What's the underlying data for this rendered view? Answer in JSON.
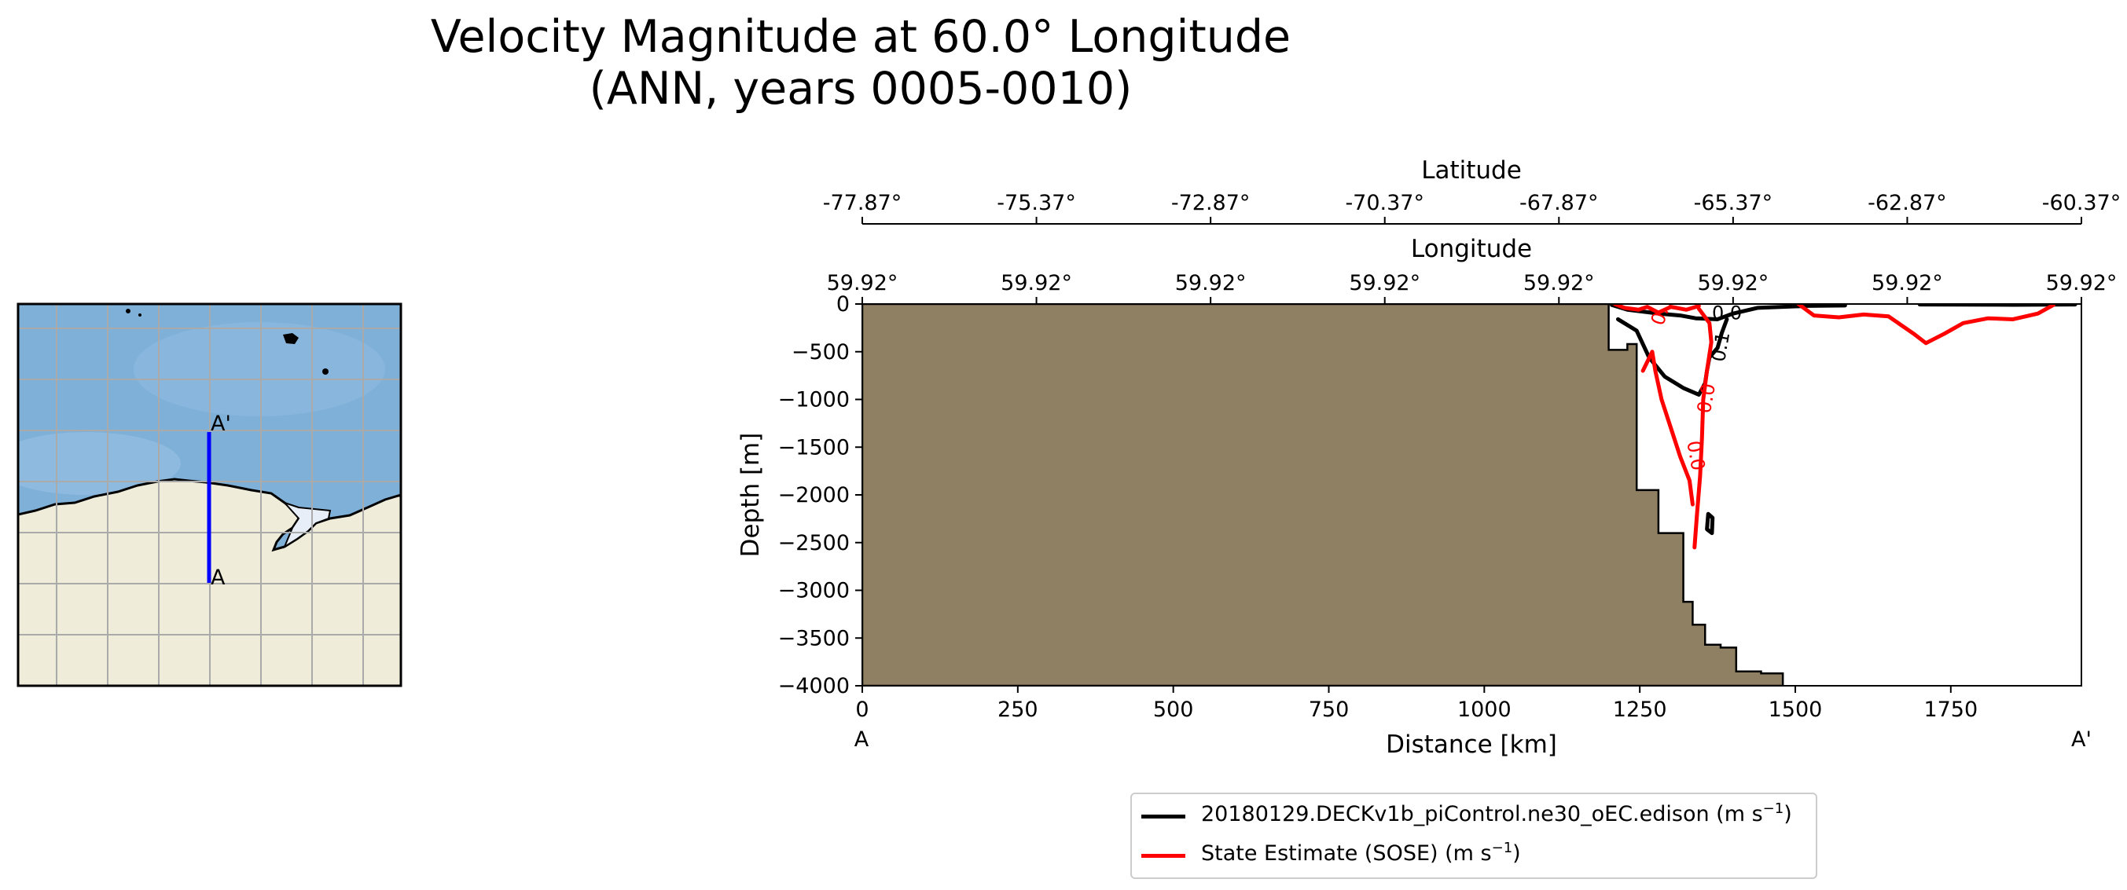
{
  "title": {
    "line1": "Velocity Magnitude at 60.0° Longitude",
    "line2": "(ANN, years 0005-0010)"
  },
  "colors": {
    "model": "#000000",
    "obs": "#ff0000",
    "land_section": "#8f7f63",
    "ocean_map": "#7fb0d8",
    "land_map": "#efedda",
    "transect": "#0000ff"
  },
  "inset_map": {
    "label_start": "A",
    "label_end": "A'"
  },
  "legend": {
    "items": [
      {
        "label": "20180129.DECKv1b_piControl.ne30_oEC.edison (m s",
        "sup": "−1",
        "close": ")",
        "color": "#000000"
      },
      {
        "label": "State Estimate (SOSE) (m s",
        "sup": "−1",
        "close": ")",
        "color": "#ff0000"
      }
    ]
  },
  "chart_data": {
    "type": "contour",
    "title": "Velocity Magnitude at 60.0° Longitude (ANN, years 0005-0010)",
    "xlabel": "Distance [km]",
    "ylabel": "Depth [m]",
    "xlim": [
      0,
      1960
    ],
    "ylim": [
      -4000,
      0
    ],
    "xticks": [
      0,
      250,
      500,
      750,
      1000,
      1250,
      1500,
      1750
    ],
    "yticks": [
      0,
      -500,
      -1000,
      -1500,
      -2000,
      -2500,
      -3000,
      -3500,
      -4000
    ],
    "ytick_labels": [
      "0",
      "−500",
      "−1000",
      "−1500",
      "−2000",
      "−2500",
      "−3000",
      "−3500",
      "−4000"
    ],
    "x_end_labels": [
      "A",
      "A'"
    ],
    "secondary_axes": [
      {
        "label": "Latitude",
        "tick_labels": [
          "-77.87°",
          "-75.37°",
          "-72.87°",
          "-70.37°",
          "-67.87°",
          "-65.37°",
          "-62.87°",
          "-60.37°"
        ]
      },
      {
        "label": "Longitude",
        "tick_labels": [
          "59.92°",
          "59.92°",
          "59.92°",
          "59.92°",
          "59.92°",
          "59.92°",
          "59.92°",
          "59.92°"
        ]
      }
    ],
    "bathymetry": [
      [
        0,
        0
      ],
      [
        1200,
        0
      ],
      [
        1200,
        -480
      ],
      [
        1230,
        -480
      ],
      [
        1230,
        -420
      ],
      [
        1245,
        -420
      ],
      [
        1245,
        -1950
      ],
      [
        1280,
        -1950
      ],
      [
        1280,
        -2400
      ],
      [
        1320,
        -2400
      ],
      [
        1320,
        -3120
      ],
      [
        1335,
        -3120
      ],
      [
        1335,
        -3360
      ],
      [
        1355,
        -3360
      ],
      [
        1355,
        -3570
      ],
      [
        1380,
        -3570
      ],
      [
        1380,
        -3600
      ],
      [
        1405,
        -3600
      ],
      [
        1405,
        -3850
      ],
      [
        1445,
        -3850
      ],
      [
        1445,
        -3870
      ],
      [
        1480,
        -3870
      ],
      [
        1480,
        -4000
      ],
      [
        0,
        -4000
      ]
    ],
    "series": [
      {
        "name": "20180129.DECKv1b_piControl.ne30_oEC.edison (m s⁻¹)",
        "color": "#000000",
        "contour_labels": [
          "0.0",
          "0.1"
        ],
        "lines": [
          [
            [
              1205,
              -10
            ],
            [
              1230,
              -60
            ],
            [
              1280,
              -100
            ],
            [
              1315,
              -120
            ],
            [
              1340,
              -150
            ],
            [
              1375,
              -160
            ],
            [
              1400,
              -100
            ],
            [
              1440,
              -40
            ],
            [
              1520,
              -20
            ],
            [
              1580,
              -15
            ]
          ],
          [
            [
              1215,
              -160
            ],
            [
              1245,
              -280
            ],
            [
              1265,
              -560
            ],
            [
              1290,
              -760
            ],
            [
              1320,
              -880
            ],
            [
              1345,
              -950
            ],
            [
              1355,
              -830
            ],
            [
              1358,
              -700
            ],
            [
              1362,
              -560
            ],
            [
              1375,
              -460
            ],
            [
              1382,
              -300
            ],
            [
              1390,
              -160
            ]
          ],
          [
            [
              1700,
              -5
            ],
            [
              1850,
              -8
            ],
            [
              1950,
              -5
            ]
          ],
          [
            [
              1360,
              -2200
            ],
            [
              1367,
              -2240
            ],
            [
              1366,
              -2400
            ],
            [
              1358,
              -2360
            ],
            [
              1360,
              -2200
            ]
          ]
        ]
      },
      {
        "name": "State Estimate (SOSE) (m s⁻¹)",
        "color": "#ff0000",
        "contour_labels": [
          "0.0",
          "0.0",
          "0.1"
        ],
        "lines": [
          [
            [
              1210,
              0
            ],
            [
              1225,
              -40
            ],
            [
              1248,
              -60
            ],
            [
              1262,
              -30
            ],
            [
              1280,
              -90
            ],
            [
              1300,
              -30
            ],
            [
              1325,
              -60
            ],
            [
              1345,
              -20
            ]
          ],
          [
            [
              1345,
              -50
            ],
            [
              1362,
              -200
            ],
            [
              1365,
              -400
            ],
            [
              1358,
              -700
            ],
            [
              1352,
              -1000
            ],
            [
              1350,
              -1400
            ],
            [
              1347,
              -1800
            ],
            [
              1342,
              -2200
            ],
            [
              1338,
              -2550
            ]
          ],
          [
            [
              1255,
              -700
            ],
            [
              1270,
              -500
            ],
            [
              1275,
              -700
            ],
            [
              1285,
              -1000
            ],
            [
              1300,
              -1300
            ],
            [
              1315,
              -1600
            ],
            [
              1330,
              -1850
            ],
            [
              1335,
              -2100
            ]
          ],
          [
            [
              1505,
              0
            ],
            [
              1530,
              -120
            ],
            [
              1570,
              -140
            ],
            [
              1610,
              -110
            ],
            [
              1650,
              -130
            ],
            [
              1690,
              -310
            ],
            [
              1710,
              -410
            ],
            [
              1740,
              -310
            ],
            [
              1770,
              -200
            ],
            [
              1810,
              -150
            ],
            [
              1850,
              -160
            ],
            [
              1890,
              -100
            ],
            [
              1915,
              -10
            ]
          ]
        ]
      }
    ]
  }
}
